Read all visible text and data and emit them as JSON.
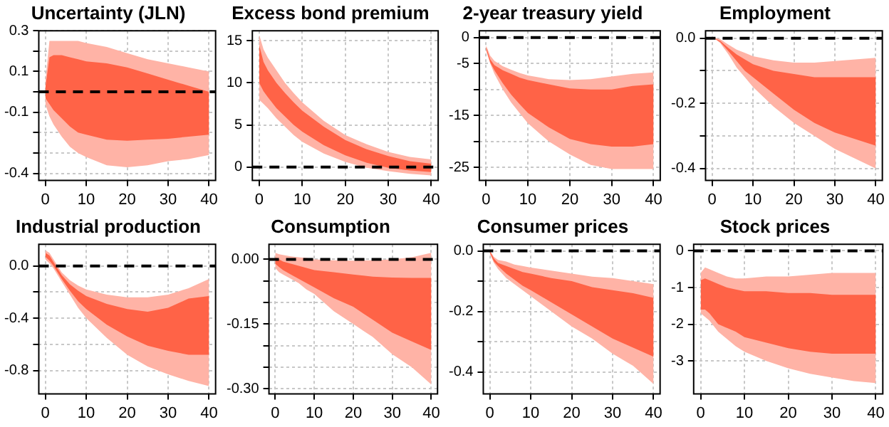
{
  "chart_data": [
    {
      "type": "line",
      "title": "Uncertainty (JLN)",
      "x": [
        0,
        1,
        2,
        4,
        6,
        8,
        10,
        15,
        20,
        25,
        30,
        35,
        40
      ],
      "xlim": [
        -1.6,
        41.6
      ],
      "xticks": [
        0,
        10,
        20,
        30,
        40
      ],
      "ylim": [
        -0.435,
        0.3
      ],
      "yticks": [
        0.3,
        {
          "value": 0.2,
          "label": null
        },
        0.1,
        {
          "value": 0,
          "label": null
        },
        -0.1,
        {
          "value": -0.2,
          "label": null
        },
        {
          "value": -0.3,
          "label": null
        },
        -0.4
      ],
      "grid": true,
      "series": [
        {
          "color": "#ffb3a6",
          "values": [
            null,
            null,
            null,
            null,
            null,
            null,
            null,
            null,
            null,
            null,
            null,
            null,
            null
          ],
          "lower": [
            -0.06,
            -0.12,
            -0.16,
            -0.22,
            -0.27,
            -0.3,
            -0.32,
            -0.36,
            -0.37,
            -0.36,
            -0.34,
            -0.33,
            -0.31
          ],
          "upper": [
            0.05,
            0.25,
            0.25,
            0.25,
            0.25,
            0.25,
            0.24,
            0.22,
            0.19,
            0.16,
            0.14,
            0.12,
            0.1
          ]
        },
        {
          "color": "#ff6347",
          "values": [
            null,
            null,
            null,
            null,
            null,
            null,
            null,
            null,
            null,
            null,
            null,
            null,
            null
          ],
          "lower": [
            -0.03,
            -0.06,
            -0.09,
            -0.13,
            -0.17,
            -0.2,
            -0.21,
            -0.235,
            -0.24,
            -0.235,
            -0.23,
            -0.22,
            -0.21
          ],
          "upper": [
            0.02,
            0.17,
            0.18,
            0.18,
            0.17,
            0.16,
            0.15,
            0.14,
            0.12,
            0.09,
            0.06,
            0.03,
            0
          ]
        }
      ],
      "ref_lines": [
        {
          "axis": "y",
          "value": 0,
          "color": "#000000",
          "line_style": "dashed"
        }
      ]
    },
    {
      "type": "line",
      "title": "Excess bond premium",
      "x": [
        0,
        1,
        2,
        4,
        6,
        8,
        10,
        15,
        20,
        25,
        30,
        35,
        40
      ],
      "xlim": [
        -1.6,
        41.6
      ],
      "xticks": [
        0,
        10,
        20,
        30,
        40
      ],
      "ylim": [
        -1.6,
        16.2
      ],
      "yticks": [
        0,
        5,
        10,
        15
      ],
      "grid": true,
      "series": [
        {
          "color": "#ffb3a6",
          "values": [
            null,
            null,
            null,
            null,
            null,
            null,
            null,
            null,
            null,
            null,
            null,
            null,
            null
          ],
          "lower": [
            8,
            7.5,
            7,
            5.8,
            4.8,
            3.8,
            3,
            1.6,
            0.6,
            -0.1,
            -0.5,
            -0.8,
            -1
          ],
          "upper": [
            15.7,
            14,
            13,
            11.5,
            10,
            8.8,
            7.7,
            5.5,
            3.8,
            2.7,
            1.8,
            1.2,
            0.9
          ]
        },
        {
          "color": "#ff6347",
          "values": [
            null,
            null,
            null,
            null,
            null,
            null,
            null,
            null,
            null,
            null,
            null,
            null,
            null
          ],
          "lower": [
            10,
            9,
            8.3,
            7,
            6,
            5,
            4.2,
            2.6,
            1.4,
            0.5,
            -0.1,
            -0.4,
            -0.6
          ],
          "upper": [
            14.5,
            12.5,
            11.5,
            10,
            8.8,
            7.7,
            6.7,
            4.8,
            3.2,
            2.1,
            1.3,
            0.7,
            0.4
          ]
        }
      ],
      "ref_lines": [
        {
          "axis": "y",
          "value": 0,
          "color": "#000000",
          "line_style": "dashed"
        }
      ]
    },
    {
      "type": "line",
      "title": "2-year treasury yield",
      "x": [
        0,
        1,
        2,
        4,
        6,
        8,
        10,
        15,
        20,
        25,
        30,
        35,
        40
      ],
      "xlim": [
        -1.6,
        41.6
      ],
      "xticks": [
        0,
        10,
        20,
        30,
        40
      ],
      "ylim": [
        -27.5,
        1.3
      ],
      "yticks": [
        0,
        -5,
        {
          "value": -10,
          "label": null
        },
        -15,
        {
          "value": -20,
          "label": null
        },
        -25
      ],
      "grid": true,
      "series": [
        {
          "color": "#ffb3a6",
          "values": [
            null,
            null,
            null,
            null,
            null,
            null,
            null,
            null,
            null,
            null,
            null,
            null,
            null
          ],
          "lower": [
            -2.5,
            -5,
            -7,
            -10,
            -12.5,
            -14.5,
            -16.5,
            -20,
            -22.5,
            -24.5,
            -25.3,
            -25.3,
            -25.3
          ],
          "upper": [
            -1.5,
            -3.5,
            -4.5,
            -5.5,
            -6.2,
            -6.8,
            -7.3,
            -8,
            -8.2,
            -8,
            -7.5,
            -7,
            -6.7
          ]
        },
        {
          "color": "#ff6347",
          "values": [
            null,
            null,
            null,
            null,
            null,
            null,
            null,
            null,
            null,
            null,
            null,
            null,
            null
          ],
          "lower": [
            -2.2,
            -4.8,
            -6.3,
            -8.8,
            -11,
            -12.8,
            -14.5,
            -17.3,
            -19.5,
            -20.5,
            -21,
            -21,
            -20.5
          ],
          "upper": [
            -1.8,
            -4.2,
            -5.3,
            -6.3,
            -7,
            -7.7,
            -8.2,
            -9,
            -9.8,
            -10,
            -10,
            -9.3,
            -9
          ]
        }
      ],
      "ref_lines": [
        {
          "axis": "y",
          "value": 0,
          "color": "#000000",
          "line_style": "dashed"
        }
      ]
    },
    {
      "type": "line",
      "title": "Employment",
      "x": [
        0,
        1,
        2,
        4,
        6,
        8,
        10,
        15,
        20,
        25,
        30,
        35,
        40
      ],
      "xlim": [
        -1.6,
        41.6
      ],
      "xticks": [
        0,
        10,
        20,
        30,
        40
      ],
      "ylim": [
        -0.437,
        0.023
      ],
      "yticks": [
        {
          "value": 0,
          "label": "0.0"
        },
        {
          "value": -0.1,
          "label": null
        },
        -0.2,
        {
          "value": -0.3,
          "label": null
        },
        -0.4
      ],
      "grid": true,
      "series": [
        {
          "color": "#ffb3a6",
          "values": [
            null,
            null,
            null,
            null,
            null,
            null,
            null,
            null,
            null,
            null,
            null,
            null,
            null
          ],
          "lower": [
            0,
            -0.005,
            -0.015,
            -0.05,
            -0.09,
            -0.12,
            -0.15,
            -0.21,
            -0.26,
            -0.3,
            -0.34,
            -0.37,
            -0.4
          ],
          "upper": [
            0,
            0,
            -0.003,
            -0.02,
            -0.035,
            -0.045,
            -0.055,
            -0.068,
            -0.075,
            -0.075,
            -0.07,
            -0.065,
            -0.06
          ]
        },
        {
          "color": "#ff6347",
          "values": [
            null,
            null,
            null,
            null,
            null,
            null,
            null,
            null,
            null,
            null,
            null,
            null,
            null
          ],
          "lower": [
            0,
            -0.004,
            -0.012,
            -0.04,
            -0.07,
            -0.1,
            -0.12,
            -0.17,
            -0.22,
            -0.26,
            -0.29,
            -0.31,
            -0.33
          ],
          "upper": [
            0,
            -0.002,
            -0.008,
            -0.03,
            -0.05,
            -0.065,
            -0.08,
            -0.1,
            -0.11,
            -0.12,
            -0.12,
            -0.12,
            -0.12
          ]
        }
      ],
      "ref_lines": [
        {
          "axis": "y",
          "value": 0,
          "color": "#000000",
          "line_style": "dashed"
        }
      ]
    },
    {
      "type": "line",
      "title": "Industrial production",
      "x": [
        0,
        1,
        2,
        4,
        6,
        8,
        10,
        15,
        20,
        25,
        30,
        35,
        40
      ],
      "xlim": [
        -1.6,
        41.6
      ],
      "xticks": [
        0,
        10,
        20,
        30,
        40
      ],
      "ylim": [
        -0.98,
        0.166
      ],
      "yticks": [
        {
          "value": 0,
          "label": "0.0"
        },
        {
          "value": -0.2,
          "label": null
        },
        -0.4,
        {
          "value": -0.6,
          "label": null
        },
        -0.8
      ],
      "grid": true,
      "series": [
        {
          "color": "#ffb3a6",
          "values": [
            null,
            null,
            null,
            null,
            null,
            null,
            null,
            null,
            null,
            null,
            null,
            null,
            null
          ],
          "lower": [
            0.05,
            0.02,
            -0.02,
            -0.12,
            -0.22,
            -0.32,
            -0.4,
            -0.55,
            -0.68,
            -0.77,
            -0.83,
            -0.88,
            -0.92
          ],
          "upper": [
            0.12,
            0.1,
            0.05,
            -0.05,
            -0.11,
            -0.15,
            -0.18,
            -0.22,
            -0.24,
            -0.24,
            -0.22,
            -0.17,
            -0.1
          ]
        },
        {
          "color": "#ff6347",
          "values": [
            null,
            null,
            null,
            null,
            null,
            null,
            null,
            null,
            null,
            null,
            null,
            null,
            null
          ],
          "lower": [
            0.07,
            0.04,
            0,
            -0.1,
            -0.19,
            -0.27,
            -0.33,
            -0.45,
            -0.54,
            -0.61,
            -0.65,
            -0.68,
            -0.68
          ],
          "upper": [
            0.1,
            0.08,
            0.03,
            -0.07,
            -0.14,
            -0.19,
            -0.23,
            -0.29,
            -0.33,
            -0.35,
            -0.32,
            -0.25,
            -0.23
          ]
        }
      ],
      "ref_lines": [
        {
          "axis": "y",
          "value": 0,
          "color": "#000000",
          "line_style": "dashed"
        }
      ]
    },
    {
      "type": "line",
      "title": "Consumption",
      "x": [
        0,
        1,
        2,
        4,
        6,
        8,
        10,
        15,
        20,
        25,
        30,
        35,
        40
      ],
      "xlim": [
        -1.6,
        41.6
      ],
      "xticks": [
        0,
        10,
        20,
        30,
        40
      ],
      "ylim": [
        -0.312,
        0.035
      ],
      "yticks": [
        {
          "value": 0,
          "label": "0.00"
        },
        {
          "value": -0.05,
          "label": null
        },
        {
          "value": -0.1,
          "label": null
        },
        -0.15,
        {
          "value": -0.2,
          "label": null
        },
        {
          "value": -0.25,
          "label": null
        },
        {
          "value": -0.3,
          "label": "-0.30"
        }
      ],
      "grid": true,
      "series": [
        {
          "color": "#ffb3a6",
          "values": [
            null,
            null,
            null,
            null,
            null,
            null,
            null,
            null,
            null,
            null,
            null,
            null,
            null
          ],
          "lower": [
            -0.02,
            -0.03,
            -0.035,
            -0.045,
            -0.055,
            -0.07,
            -0.08,
            -0.12,
            -0.15,
            -0.18,
            -0.22,
            -0.25,
            -0.29
          ],
          "upper": [
            0.015,
            0.012,
            0.01,
            0.007,
            0.005,
            0.003,
            0,
            -0.002,
            -0.003,
            -0.002,
            0,
            0.005,
            0.015
          ]
        },
        {
          "color": "#ff6347",
          "values": [
            null,
            null,
            null,
            null,
            null,
            null,
            null,
            null,
            null,
            null,
            null,
            null,
            null
          ],
          "lower": [
            -0.01,
            -0.018,
            -0.025,
            -0.035,
            -0.045,
            -0.055,
            -0.065,
            -0.09,
            -0.11,
            -0.14,
            -0.17,
            -0.19,
            -0.21
          ],
          "upper": [
            0.005,
            0,
            -0.005,
            -0.01,
            -0.015,
            -0.02,
            -0.025,
            -0.03,
            -0.035,
            -0.04,
            -0.042,
            -0.043,
            -0.043
          ]
        }
      ],
      "ref_lines": [
        {
          "axis": "y",
          "value": 0,
          "color": "#000000",
          "line_style": "dashed"
        }
      ]
    },
    {
      "type": "line",
      "title": "Consumer prices",
      "x": [
        0,
        1,
        2,
        4,
        6,
        8,
        10,
        15,
        20,
        25,
        30,
        35,
        40
      ],
      "xlim": [
        -1.6,
        41.6
      ],
      "xticks": [
        0,
        10,
        20,
        30,
        40
      ],
      "ylim": [
        -0.473,
        0.022
      ],
      "yticks": [
        {
          "value": 0,
          "label": "0.0"
        },
        {
          "value": -0.1,
          "label": null
        },
        -0.2,
        {
          "value": -0.3,
          "label": null
        },
        -0.4
      ],
      "grid": true,
      "series": [
        {
          "color": "#ffb3a6",
          "values": [
            null,
            null,
            null,
            null,
            null,
            null,
            null,
            null,
            null,
            null,
            null,
            null,
            null
          ],
          "lower": [
            -0.01,
            -0.04,
            -0.06,
            -0.09,
            -0.11,
            -0.13,
            -0.15,
            -0.2,
            -0.25,
            -0.29,
            -0.34,
            -0.38,
            -0.44
          ],
          "upper": [
            0,
            -0.02,
            -0.03,
            -0.035,
            -0.045,
            -0.05,
            -0.055,
            -0.065,
            -0.075,
            -0.085,
            -0.09,
            -0.1,
            -0.11
          ]
        },
        {
          "color": "#ff6347",
          "values": [
            null,
            null,
            null,
            null,
            null,
            null,
            null,
            null,
            null,
            null,
            null,
            null,
            null
          ],
          "lower": [
            -0.005,
            -0.035,
            -0.05,
            -0.075,
            -0.095,
            -0.115,
            -0.13,
            -0.17,
            -0.21,
            -0.25,
            -0.29,
            -0.32,
            -0.35
          ],
          "upper": [
            0,
            -0.025,
            -0.04,
            -0.05,
            -0.06,
            -0.07,
            -0.075,
            -0.09,
            -0.1,
            -0.12,
            -0.13,
            -0.14,
            -0.155
          ]
        }
      ],
      "ref_lines": [
        {
          "axis": "y",
          "value": 0,
          "color": "#000000",
          "line_style": "dashed"
        }
      ]
    },
    {
      "type": "line",
      "title": "Stock prices",
      "x": [
        0,
        1,
        2,
        4,
        6,
        8,
        10,
        15,
        20,
        25,
        30,
        35,
        40
      ],
      "xlim": [
        -1.6,
        41.6
      ],
      "xticks": [
        0,
        10,
        20,
        30,
        40
      ],
      "ylim": [
        -3.9,
        0.18
      ],
      "yticks": [
        0,
        -1,
        -2,
        -3
      ],
      "grid": true,
      "series": [
        {
          "color": "#ffb3a6",
          "values": [
            null,
            null,
            null,
            null,
            null,
            null,
            null,
            null,
            null,
            null,
            null,
            null,
            null
          ],
          "lower": [
            -1.7,
            -1.8,
            -1.9,
            -2.2,
            -2.4,
            -2.6,
            -2.75,
            -3,
            -3.2,
            -3.35,
            -3.45,
            -3.55,
            -3.6
          ],
          "upper": [
            -0.6,
            -0.45,
            -0.5,
            -0.6,
            -0.7,
            -0.75,
            -0.75,
            -0.7,
            -0.7,
            -0.65,
            -0.6,
            -0.6,
            -0.6
          ]
        },
        {
          "color": "#ff6347",
          "values": [
            null,
            null,
            null,
            null,
            null,
            null,
            null,
            null,
            null,
            null,
            null,
            null,
            null
          ],
          "lower": [
            -1.6,
            -1.6,
            -1.7,
            -2,
            -2.1,
            -2.2,
            -2.35,
            -2.5,
            -2.65,
            -2.75,
            -2.8,
            -2.8,
            -2.8
          ],
          "upper": [
            -0.8,
            -0.75,
            -0.8,
            -0.9,
            -1,
            -1.05,
            -1.1,
            -1.1,
            -1.15,
            -1.15,
            -1.2,
            -1.2,
            -1.2
          ]
        }
      ],
      "ref_lines": [
        {
          "axis": "y",
          "value": 0,
          "color": "#000000",
          "line_style": "dashed"
        }
      ]
    }
  ]
}
